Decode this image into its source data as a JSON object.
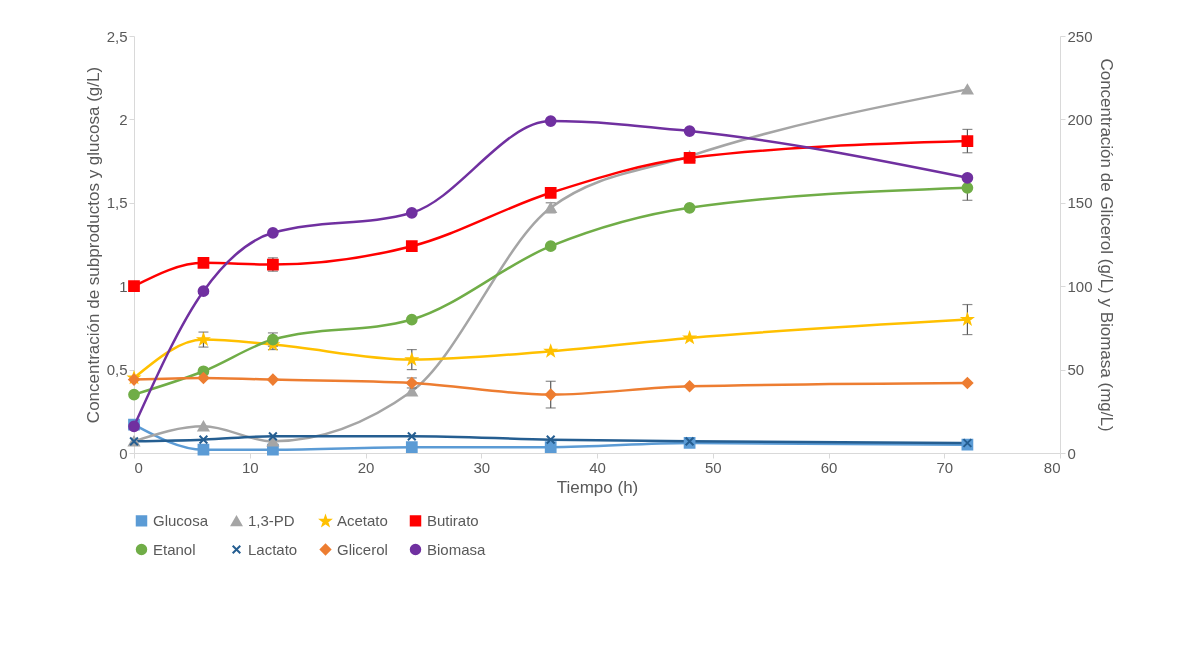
{
  "chart_data": {
    "type": "line",
    "xlabel": "Tiempo (h)",
    "ylabel": "Concentración de subproductos y glucosa (g/L)",
    "y2label": "Concentración de Glicerol (g/L) y Biomasa (mg/L)",
    "x": [
      0,
      6,
      12,
      24,
      36,
      48,
      72
    ],
    "xlim": [
      0,
      80
    ],
    "xticks": [
      0,
      10,
      20,
      30,
      40,
      50,
      60,
      70,
      80
    ],
    "ylim": [
      0,
      2.5
    ],
    "yticks": [
      {
        "value": 0,
        "label": "0"
      },
      {
        "value": 0.5,
        "label": "0,5"
      },
      {
        "value": 1,
        "label": "1"
      },
      {
        "value": 1.5,
        "label": "1,5"
      },
      {
        "value": 2,
        "label": "2"
      },
      {
        "value": 2.5,
        "label": "2,5"
      }
    ],
    "y2lim": [
      0,
      250
    ],
    "y2ticks": [
      0,
      50,
      100,
      150,
      200,
      250
    ],
    "grid": false,
    "legend": "bottom",
    "series": [
      {
        "name": "Glucosa",
        "color": "#5b9bd5",
        "marker": "square",
        "values": [
          0.17,
          0.02,
          0.02,
          0.035,
          0.035,
          0.06,
          0.05
        ]
      },
      {
        "name": "1,3-PD",
        "color": "#a5a5a5",
        "marker": "triangle",
        "values": [
          0.07,
          0.16,
          0.07,
          0.37,
          1.47,
          1.78,
          2.18
        ],
        "errors": [
          null,
          null,
          null,
          null,
          0.03,
          null,
          null
        ]
      },
      {
        "name": "Acetato",
        "color": "#ffc000",
        "marker": "star",
        "values": [
          0.45,
          0.68,
          0.65,
          0.56,
          0.61,
          0.69,
          0.8
        ],
        "errors": [
          null,
          0.045,
          0.03,
          0.06,
          null,
          null,
          0.09
        ]
      },
      {
        "name": "Butirato",
        "color": "#ff0000",
        "marker": "square",
        "values": [
          1.0,
          1.14,
          1.13,
          1.24,
          1.56,
          1.77,
          1.87
        ],
        "errors": [
          null,
          null,
          0.04,
          null,
          null,
          null,
          0.07
        ]
      },
      {
        "name": "Etanol",
        "color": "#70ad47",
        "marker": "circle",
        "values": [
          0.35,
          0.49,
          0.68,
          0.8,
          1.24,
          1.47,
          1.59
        ],
        "errors": [
          null,
          null,
          0.04,
          null,
          null,
          null,
          0.075
        ]
      },
      {
        "name": "Lactato",
        "color": "#255e91",
        "marker": "cross",
        "values": [
          0.07,
          0.08,
          0.1,
          0.1,
          0.08,
          0.07,
          0.06
        ]
      },
      {
        "name": "Glicerol",
        "color": "#ed7d31",
        "marker": "diamond",
        "axis": "y2",
        "values": [
          44,
          45,
          44,
          42,
          35,
          40,
          42
        ],
        "errors": [
          null,
          null,
          null,
          3,
          8,
          null,
          null
        ]
      },
      {
        "name": "Biomasa",
        "color": "#7030a0",
        "marker": "circle",
        "axis": "y2",
        "values": [
          16,
          97,
          132,
          144,
          199,
          193,
          165
        ]
      }
    ]
  }
}
